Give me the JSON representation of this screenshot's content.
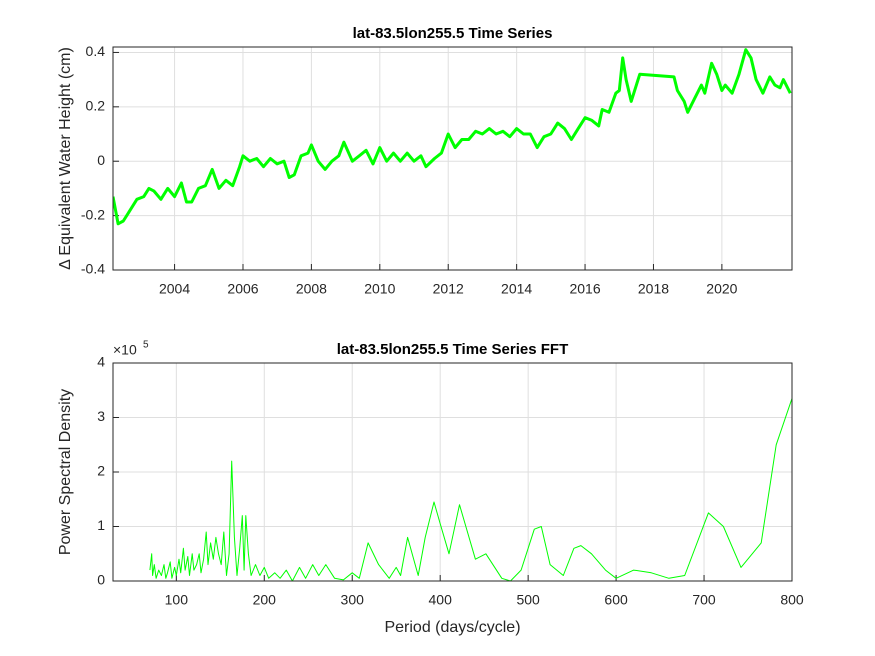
{
  "chart_data": [
    {
      "type": "line",
      "title": "lat-83.5lon255.5 Time Series",
      "ylabel": "Δ  Equivalent Water Height (cm)",
      "xlim": [
        2002.2,
        2022.05
      ],
      "xticks": [
        2004,
        2006,
        2008,
        2010,
        2012,
        2014,
        2016,
        2018,
        2020
      ],
      "ylim": [
        -0.4,
        0.42
      ],
      "yticks": [
        -0.4,
        -0.2,
        0,
        0.2,
        0.4
      ],
      "grid": true,
      "line_width": 3,
      "series": [
        {
          "color": "#00ff00",
          "x": [
            2002.2,
            2002.35,
            2002.5,
            2002.7,
            2002.9,
            2003.1,
            2003.25,
            2003.4,
            2003.6,
            2003.8,
            2004.0,
            2004.2,
            2004.35,
            2004.5,
            2004.7,
            2004.9,
            2005.1,
            2005.3,
            2005.5,
            2005.7,
            2005.9,
            2006.0,
            2006.2,
            2006.4,
            2006.6,
            2006.8,
            2007.0,
            2007.2,
            2007.35,
            2007.5,
            2007.7,
            2007.9,
            2008.0,
            2008.2,
            2008.4,
            2008.6,
            2008.8,
            2008.95,
            2009.2,
            2009.4,
            2009.6,
            2009.8,
            2010.0,
            2010.2,
            2010.4,
            2010.6,
            2010.8,
            2011.0,
            2011.2,
            2011.35,
            2011.6,
            2011.8,
            2012.0,
            2012.2,
            2012.4,
            2012.6,
            2012.8,
            2013.0,
            2013.2,
            2013.4,
            2013.6,
            2013.8,
            2014.0,
            2014.2,
            2014.4,
            2014.6,
            2014.8,
            2015.0,
            2015.2,
            2015.4,
            2015.6,
            2015.8,
            2016.0,
            2016.2,
            2016.4,
            2016.5,
            2016.7,
            2016.9,
            2017.0,
            2017.1,
            2017.2,
            2017.35,
            2017.6,
            2018.6,
            2018.7,
            2018.9,
            2019.0,
            2019.2,
            2019.4,
            2019.5,
            2019.7,
            2019.85,
            2020.0,
            2020.1,
            2020.3,
            2020.5,
            2020.7,
            2020.85,
            2021.0,
            2021.2,
            2021.4,
            2021.55,
            2021.7,
            2021.8,
            2022.0
          ],
          "values": [
            -0.13,
            -0.23,
            -0.22,
            -0.18,
            -0.14,
            -0.13,
            -0.1,
            -0.11,
            -0.14,
            -0.1,
            -0.13,
            -0.08,
            -0.15,
            -0.15,
            -0.1,
            -0.09,
            -0.03,
            -0.1,
            -0.07,
            -0.09,
            -0.02,
            0.02,
            0.0,
            0.01,
            -0.02,
            0.01,
            -0.01,
            0.0,
            -0.06,
            -0.05,
            0.02,
            0.03,
            0.06,
            0.0,
            -0.03,
            0.0,
            0.02,
            0.07,
            0.0,
            0.02,
            0.04,
            -0.01,
            0.05,
            0.0,
            0.03,
            0.0,
            0.03,
            0.0,
            0.02,
            -0.02,
            0.01,
            0.03,
            0.1,
            0.05,
            0.08,
            0.08,
            0.11,
            0.1,
            0.12,
            0.1,
            0.11,
            0.09,
            0.12,
            0.1,
            0.1,
            0.05,
            0.09,
            0.1,
            0.14,
            0.12,
            0.08,
            0.12,
            0.16,
            0.15,
            0.13,
            0.19,
            0.18,
            0.25,
            0.26,
            0.38,
            0.3,
            0.22,
            0.32,
            0.31,
            0.26,
            0.22,
            0.18,
            0.23,
            0.28,
            0.25,
            0.36,
            0.32,
            0.26,
            0.28,
            0.25,
            0.32,
            0.41,
            0.38,
            0.3,
            0.25,
            0.31,
            0.28,
            0.27,
            0.3,
            0.25
          ]
        }
      ]
    },
    {
      "type": "line",
      "title": "lat-83.5lon255.5 Time Series FFT",
      "xlabel": "Period (days/cycle)",
      "ylabel": "Power Spectral Density",
      "y_multiplier": "×10",
      "y_multiplier_exponent": "5",
      "xlim": [
        28,
        800
      ],
      "xticks": [
        100,
        200,
        300,
        400,
        500,
        600,
        700,
        800
      ],
      "ylim": [
        0,
        4
      ],
      "yticks": [
        0,
        1,
        2,
        3,
        4
      ],
      "grid": true,
      "line_width": 1,
      "series": [
        {
          "color": "#00ff00",
          "x": [
            70,
            72,
            73,
            75,
            77,
            80,
            83,
            86,
            88,
            90,
            93,
            95,
            98,
            100,
            103,
            105,
            108,
            110,
            113,
            115,
            118,
            120,
            123,
            126,
            128,
            131,
            134,
            136,
            139,
            142,
            145,
            148,
            151,
            154,
            157,
            160,
            163,
            166,
            169,
            172,
            175,
            177,
            179,
            182,
            185,
            190,
            195,
            200,
            205,
            212,
            218,
            225,
            232,
            240,
            247,
            255,
            262,
            270,
            280,
            290,
            300,
            308,
            318,
            330,
            342,
            350,
            355,
            363,
            375,
            383,
            393,
            400,
            410,
            422,
            440,
            452,
            470,
            480,
            492,
            507,
            515,
            525,
            540,
            552,
            560,
            572,
            588,
            600,
            620,
            640,
            660,
            678,
            705,
            722,
            742,
            765,
            782,
            800
          ],
          "values": [
            0.2,
            0.5,
            0.1,
            0.3,
            0.05,
            0.2,
            0.1,
            0.3,
            0.05,
            0.15,
            0.35,
            0.05,
            0.25,
            0.1,
            0.4,
            0.15,
            0.6,
            0.2,
            0.45,
            0.1,
            0.5,
            0.2,
            0.3,
            0.5,
            0.15,
            0.4,
            0.9,
            0.3,
            0.7,
            0.4,
            0.8,
            0.5,
            0.3,
            0.9,
            0.1,
            0.5,
            2.2,
            0.8,
            0.1,
            0.6,
            1.2,
            0.2,
            1.2,
            0.5,
            0.1,
            0.3,
            0.1,
            0.25,
            0.05,
            0.15,
            0.05,
            0.2,
            0.0,
            0.25,
            0.05,
            0.3,
            0.1,
            0.3,
            0.05,
            0.02,
            0.15,
            0.05,
            0.7,
            0.3,
            0.05,
            0.25,
            0.1,
            0.8,
            0.1,
            0.8,
            1.45,
            1.05,
            0.5,
            1.4,
            0.4,
            0.5,
            0.05,
            0.0,
            0.2,
            0.95,
            1.0,
            0.3,
            0.1,
            0.6,
            0.65,
            0.5,
            0.2,
            0.05,
            0.2,
            0.15,
            0.05,
            0.1,
            1.25,
            1.0,
            0.25,
            0.7,
            2.5,
            3.35
          ]
        }
      ]
    }
  ]
}
